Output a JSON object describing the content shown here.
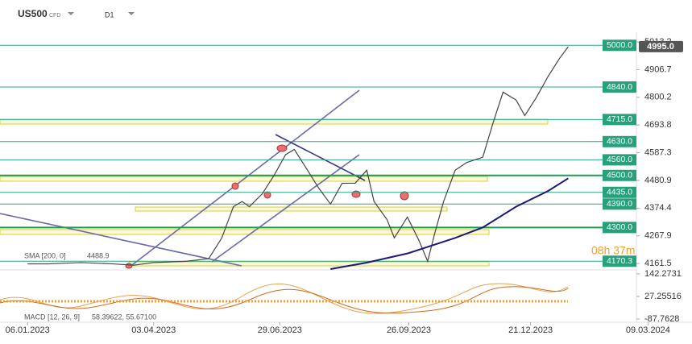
{
  "header": {
    "symbol": "US500",
    "kind": "CFD",
    "timeframe": "D1"
  },
  "chart_data": {
    "type": "line",
    "xlim": [
      -19,
      420
    ],
    "ylim": [
      4137,
      5035
    ],
    "xticks": [
      {
        "value": 0,
        "label": "06.01.2023"
      },
      {
        "value": 87,
        "label": "03.04.2023"
      },
      {
        "value": 174,
        "label": "29.06.2023"
      },
      {
        "value": 263,
        "label": "26.09.2023"
      },
      {
        "value": 347,
        "label": "21.12.2023"
      },
      {
        "value": 428,
        "label": "09.03.2024"
      }
    ],
    "yticks": [
      5013.2,
      4906.7,
      4800.2,
      4693.8,
      4587.3,
      4480.9,
      4374.4,
      4267.9,
      4161.5
    ],
    "series": [
      {
        "color": "#444444",
        "x": [
          0,
          14,
          37,
          59,
          73,
          87,
          109,
          125,
          134,
          142,
          148,
          153,
          162,
          170,
          178,
          184,
          192,
          201,
          209,
          217,
          226,
          234,
          239,
          248,
          253,
          262,
          270,
          276,
          281,
          287,
          295,
          303,
          314,
          321,
          328,
          337,
          343,
          351,
          359,
          367,
          373
        ],
        "values": [
          4160,
          4160,
          4165,
          4160,
          4155,
          4165,
          4170,
          4180,
          4260,
          4380,
          4400,
          4380,
          4430,
          4500,
          4580,
          4600,
          4530,
          4450,
          4390,
          4470,
          4470,
          4520,
          4400,
          4330,
          4260,
          4340,
          4250,
          4170,
          4280,
          4400,
          4520,
          4550,
          4570,
          4700,
          4820,
          4790,
          4730,
          4800,
          4880,
          4950,
          4995
        ]
      },
      {
        "color": "#1a1a7a",
        "x": [
          209,
          234,
          262,
          295,
          314,
          337,
          359,
          373
        ],
        "values": [
          4140,
          4165,
          4200,
          4260,
          4300,
          4380,
          4440,
          4489
        ]
      }
    ],
    "levels": [
      {
        "value": 5000,
        "label": "5000.0"
      },
      {
        "value": 4840,
        "label": "4840.0"
      },
      {
        "value": 4715,
        "label": "4715.0"
      },
      {
        "value": 4630,
        "label": "4630.0"
      },
      {
        "value": 4560,
        "label": "4560.0"
      },
      {
        "value": 4500,
        "label": "4500.0"
      },
      {
        "value": 4435,
        "label": "4435.0"
      },
      {
        "value": 4390,
        "label": "4390.0"
      },
      {
        "value": 4300,
        "label": "4300.0"
      },
      {
        "value": 4170.3,
        "label": "4170.3"
      }
    ],
    "last_price": {
      "value": 4995,
      "label": "4995.0"
    },
    "timer": "08h 37m",
    "sma_label": "SMA [200, 0]",
    "sma_value": "4488.9",
    "macd_label": "MACD [12, 26, 9]",
    "macd_values": "58.39622, 55.67100",
    "macd_ylim": [
      -100,
      150
    ],
    "macd_ticks": [
      142.2731,
      27.25516,
      -87.7628
    ]
  }
}
